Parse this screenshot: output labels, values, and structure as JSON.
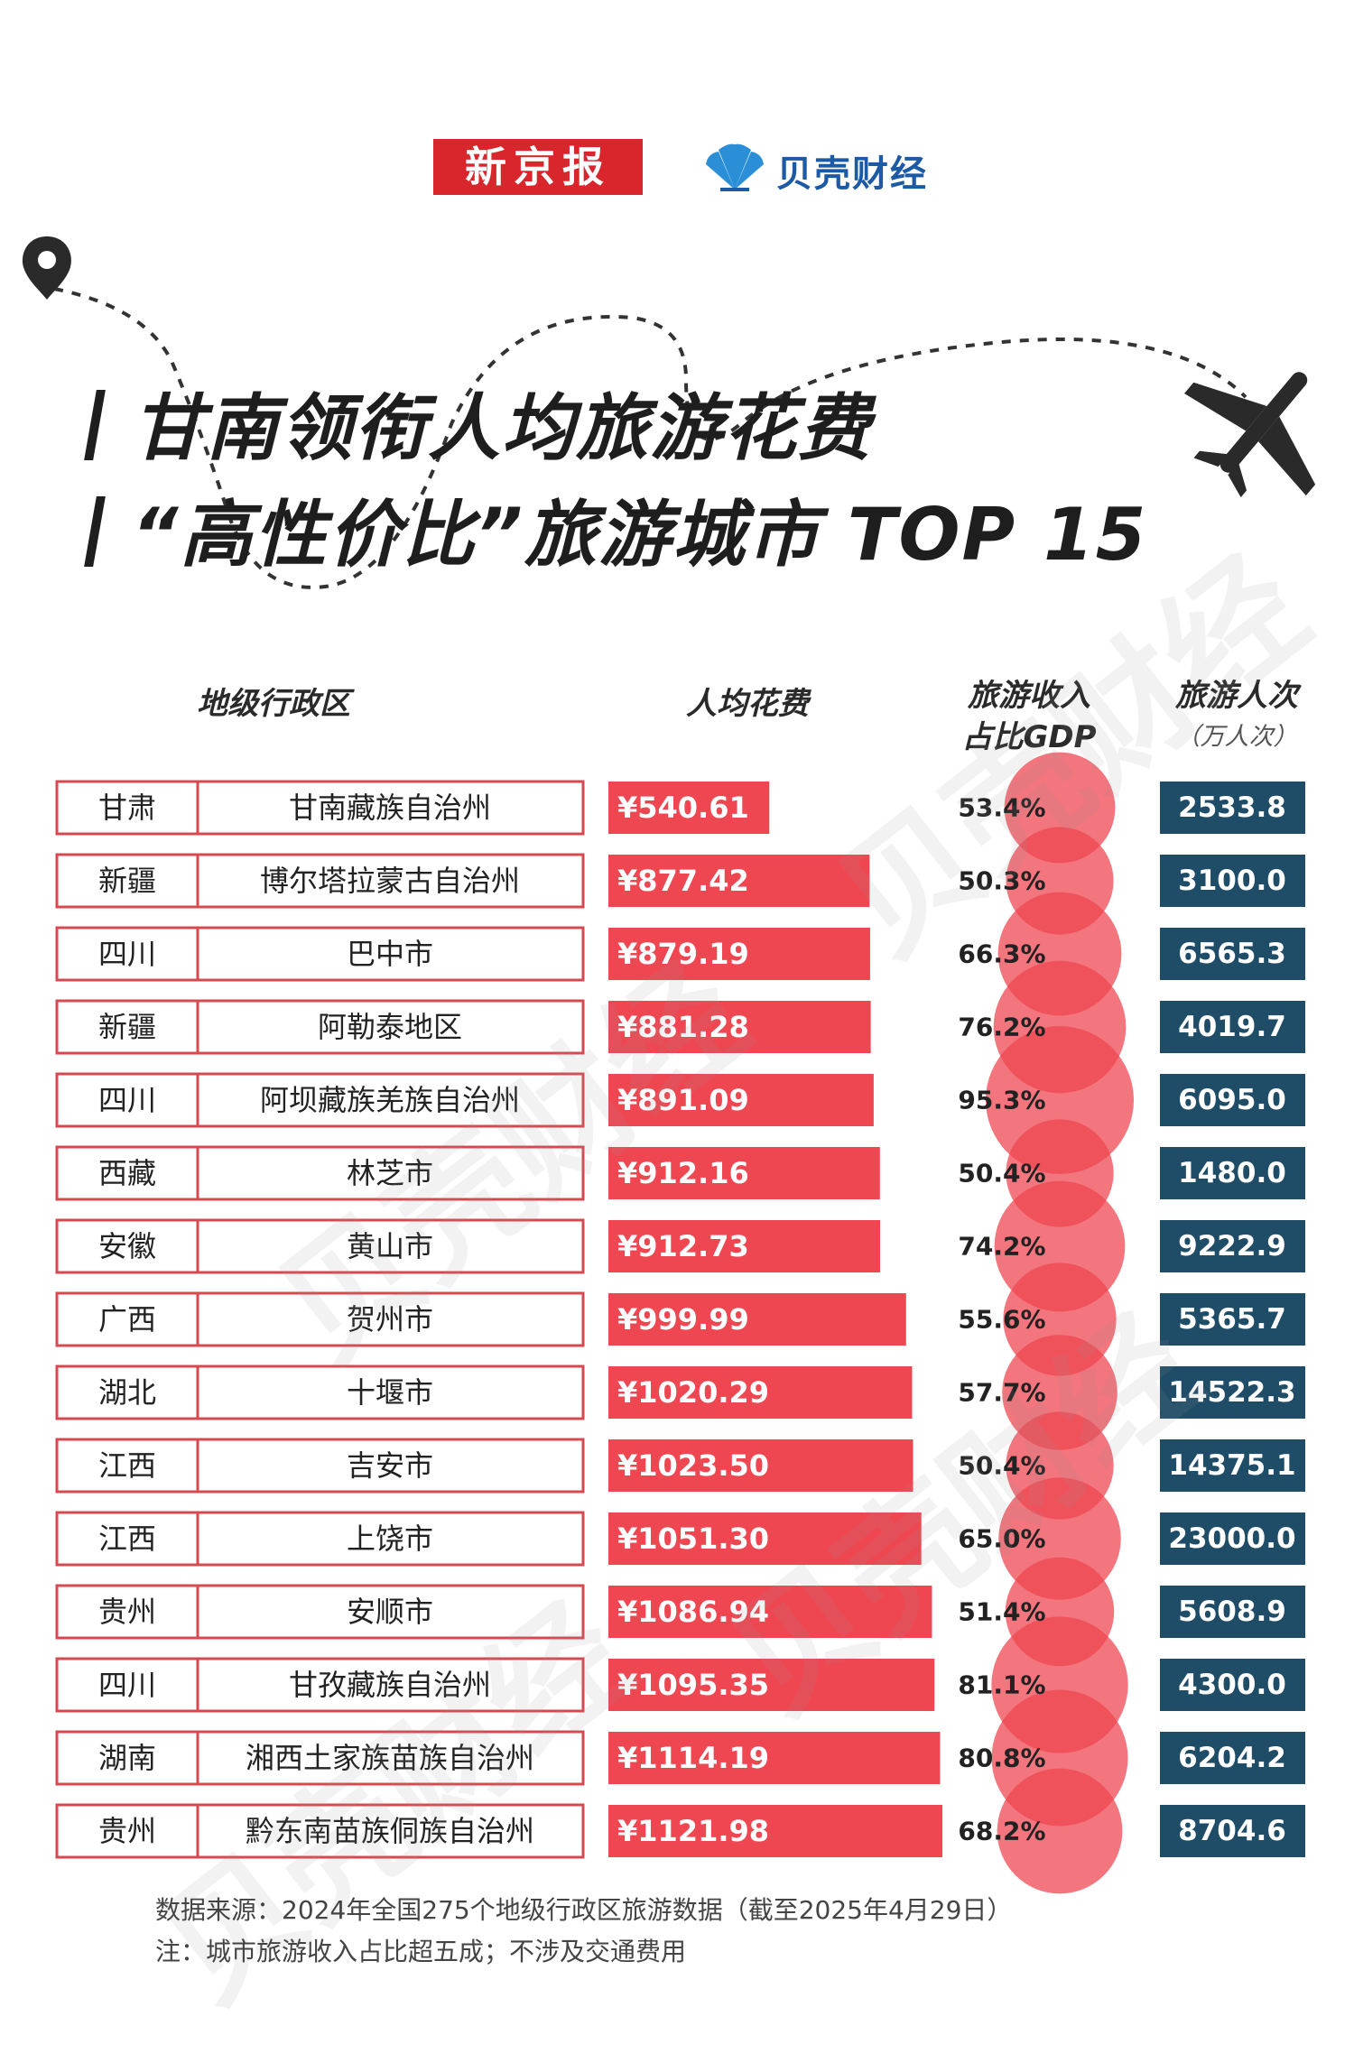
{
  "header": {
    "logo_xjb": "新京报",
    "logo_bk": "贝壳财经"
  },
  "title": {
    "line1": "甘南领衔人均旅游花费",
    "line2": "“高性价比”旅游城市 TOP 15"
  },
  "columns": {
    "region": "地级行政区",
    "spend": "人均花费",
    "share_line1": "旅游收入",
    "share_line2": "占比GDP",
    "visits": "旅游人次",
    "visits_unit": "（万人次）"
  },
  "colors": {
    "bar": "#ef4752",
    "bubble": "#ef4752",
    "visits_box": "#1f4d68",
    "cell_border": "#d7494f"
  },
  "chart_data": {
    "type": "table",
    "title": "甘南领衔人均旅游花费“高性价比”旅游城市 TOP 15",
    "rows": [
      {
        "province": "甘肃",
        "city": "甘南藏族自治州",
        "spend": 540.61,
        "spend_label": "¥540.61",
        "share": 53.4,
        "share_label": "53.4%",
        "visits": "2533.8"
      },
      {
        "province": "新疆",
        "city": "博尔塔拉蒙古自治州",
        "spend": 877.42,
        "spend_label": "¥877.42",
        "share": 50.3,
        "share_label": "50.3%",
        "visits": "3100.0"
      },
      {
        "province": "四川",
        "city": "巴中市",
        "spend": 879.19,
        "spend_label": "¥879.19",
        "share": 66.3,
        "share_label": "66.3%",
        "visits": "6565.3"
      },
      {
        "province": "新疆",
        "city": "阿勒泰地区",
        "spend": 881.28,
        "spend_label": "¥881.28",
        "share": 76.2,
        "share_label": "76.2%",
        "visits": "4019.7"
      },
      {
        "province": "四川",
        "city": "阿坝藏族羌族自治州",
        "spend": 891.09,
        "spend_label": "¥891.09",
        "share": 95.3,
        "share_label": "95.3%",
        "visits": "6095.0"
      },
      {
        "province": "西藏",
        "city": "林芝市",
        "spend": 912.16,
        "spend_label": "¥912.16",
        "share": 50.4,
        "share_label": "50.4%",
        "visits": "1480.0"
      },
      {
        "province": "安徽",
        "city": "黄山市",
        "spend": 912.73,
        "spend_label": "¥912.73",
        "share": 74.2,
        "share_label": "74.2%",
        "visits": "9222.9"
      },
      {
        "province": "广西",
        "city": "贺州市",
        "spend": 999.99,
        "spend_label": "¥999.99",
        "share": 55.6,
        "share_label": "55.6%",
        "visits": "5365.7"
      },
      {
        "province": "湖北",
        "city": "十堰市",
        "spend": 1020.29,
        "spend_label": "¥1020.29",
        "share": 57.7,
        "share_label": "57.7%",
        "visits": "14522.3"
      },
      {
        "province": "江西",
        "city": "吉安市",
        "spend": 1023.5,
        "spend_label": "¥1023.50",
        "share": 50.4,
        "share_label": "50.4%",
        "visits": "14375.1"
      },
      {
        "province": "江西",
        "city": "上饶市",
        "spend": 1051.3,
        "spend_label": "¥1051.30",
        "share": 65.0,
        "share_label": "65.0%",
        "visits": "23000.0"
      },
      {
        "province": "贵州",
        "city": "安顺市",
        "spend": 1086.94,
        "spend_label": "¥1086.94",
        "share": 51.4,
        "share_label": "51.4%",
        "visits": "5608.9"
      },
      {
        "province": "四川",
        "city": "甘孜藏族自治州",
        "spend": 1095.35,
        "spend_label": "¥1095.35",
        "share": 81.1,
        "share_label": "81.1%",
        "visits": "4300.0"
      },
      {
        "province": "湖南",
        "city": "湘西土家族苗族自治州",
        "spend": 1114.19,
        "spend_label": "¥1114.19",
        "share": 80.8,
        "share_label": "80.8%",
        "visits": "6204.2"
      },
      {
        "province": "贵州",
        "city": "黔东南苗族侗族自治州",
        "spend": 1121.98,
        "spend_label": "¥1121.98",
        "share": 68.2,
        "share_label": "68.2%",
        "visits": "8704.6"
      }
    ]
  },
  "footer": {
    "source": "数据来源：2024年全国275个地级行政区旅游数据（截至2025年4月29日）",
    "note": "注：城市旅游收入占比超五成；不涉及交通费用"
  },
  "watermark": "贝壳财经"
}
